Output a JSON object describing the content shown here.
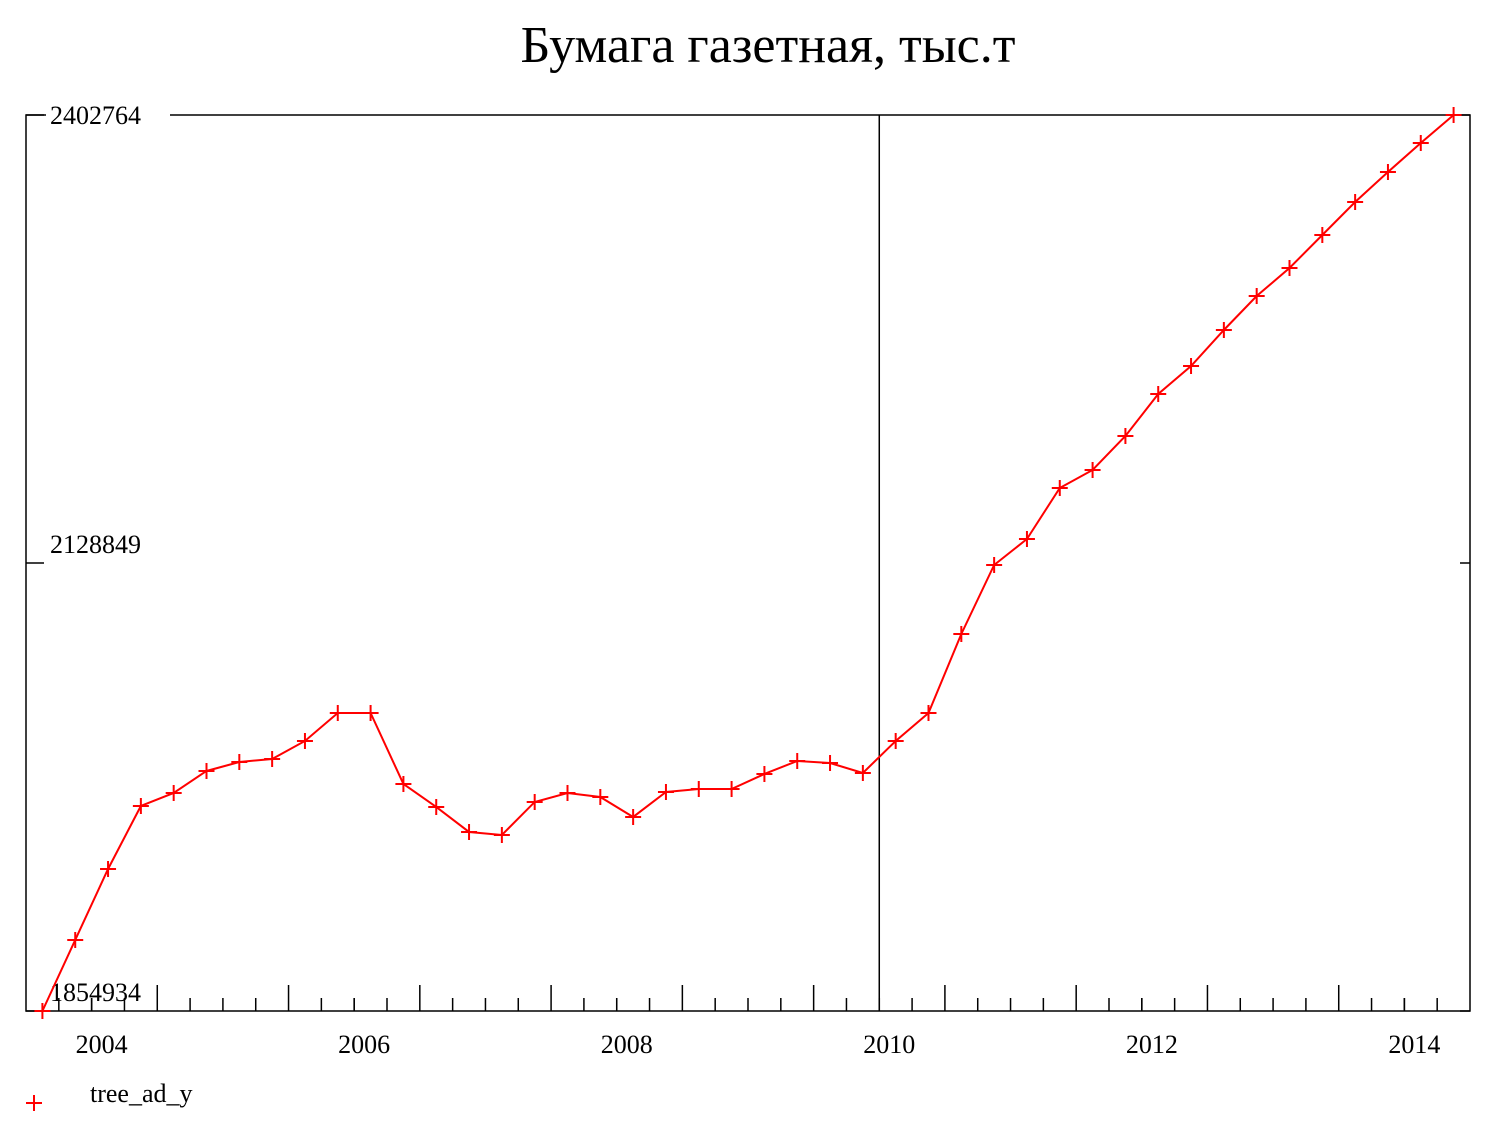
{
  "chart_data": {
    "type": "line",
    "title": "Бумага газетная, тыс.т",
    "x": [
      2003.625,
      2003.875,
      2004.125,
      2004.375,
      2004.625,
      2004.875,
      2005.125,
      2005.375,
      2005.625,
      2005.875,
      2006.125,
      2006.375,
      2006.625,
      2006.875,
      2007.125,
      2007.375,
      2007.625,
      2007.875,
      2008.125,
      2008.375,
      2008.625,
      2008.875,
      2009.125,
      2009.375,
      2009.625,
      2009.875,
      2010.125,
      2010.375,
      2010.625,
      2010.875,
      2011.125,
      2011.375,
      2011.625,
      2011.875,
      2012.125,
      2012.375,
      2012.625,
      2012.875,
      2013.125,
      2013.375,
      2013.625,
      2013.875,
      2014.125,
      2014.375
    ],
    "series": [
      {
        "name": "tree_ad_y",
        "color": "#ff0000",
        "values": [
          1854934,
          1898359,
          1941764,
          1980287,
          1988235,
          2001686,
          2007188,
          2009022,
          2020028,
          2037147,
          2037147,
          1993737,
          1979675,
          1964390,
          1962556,
          1982732,
          1988235,
          1985789,
          1973561,
          1988846,
          1990680,
          1990680,
          1999851,
          2007800,
          2006577,
          2000463,
          2020028,
          2037147,
          2085447,
          2127634,
          2143530,
          2174712,
          2185717,
          2206505,
          2232183,
          2249303,
          2271313,
          2292101,
          2309220,
          2329396,
          2349572,
          2367914,
          2385645,
          2402764
        ]
      }
    ],
    "xlim": [
      2003.5,
      2014.5
    ],
    "xticks": [
      2004,
      2006,
      2008,
      2010,
      2012,
      2014
    ],
    "ylim": [
      1854934,
      2402764
    ],
    "yticks": [
      1854934,
      2128849,
      2402764
    ],
    "vline": 2010,
    "legend": "bottom-left"
  }
}
